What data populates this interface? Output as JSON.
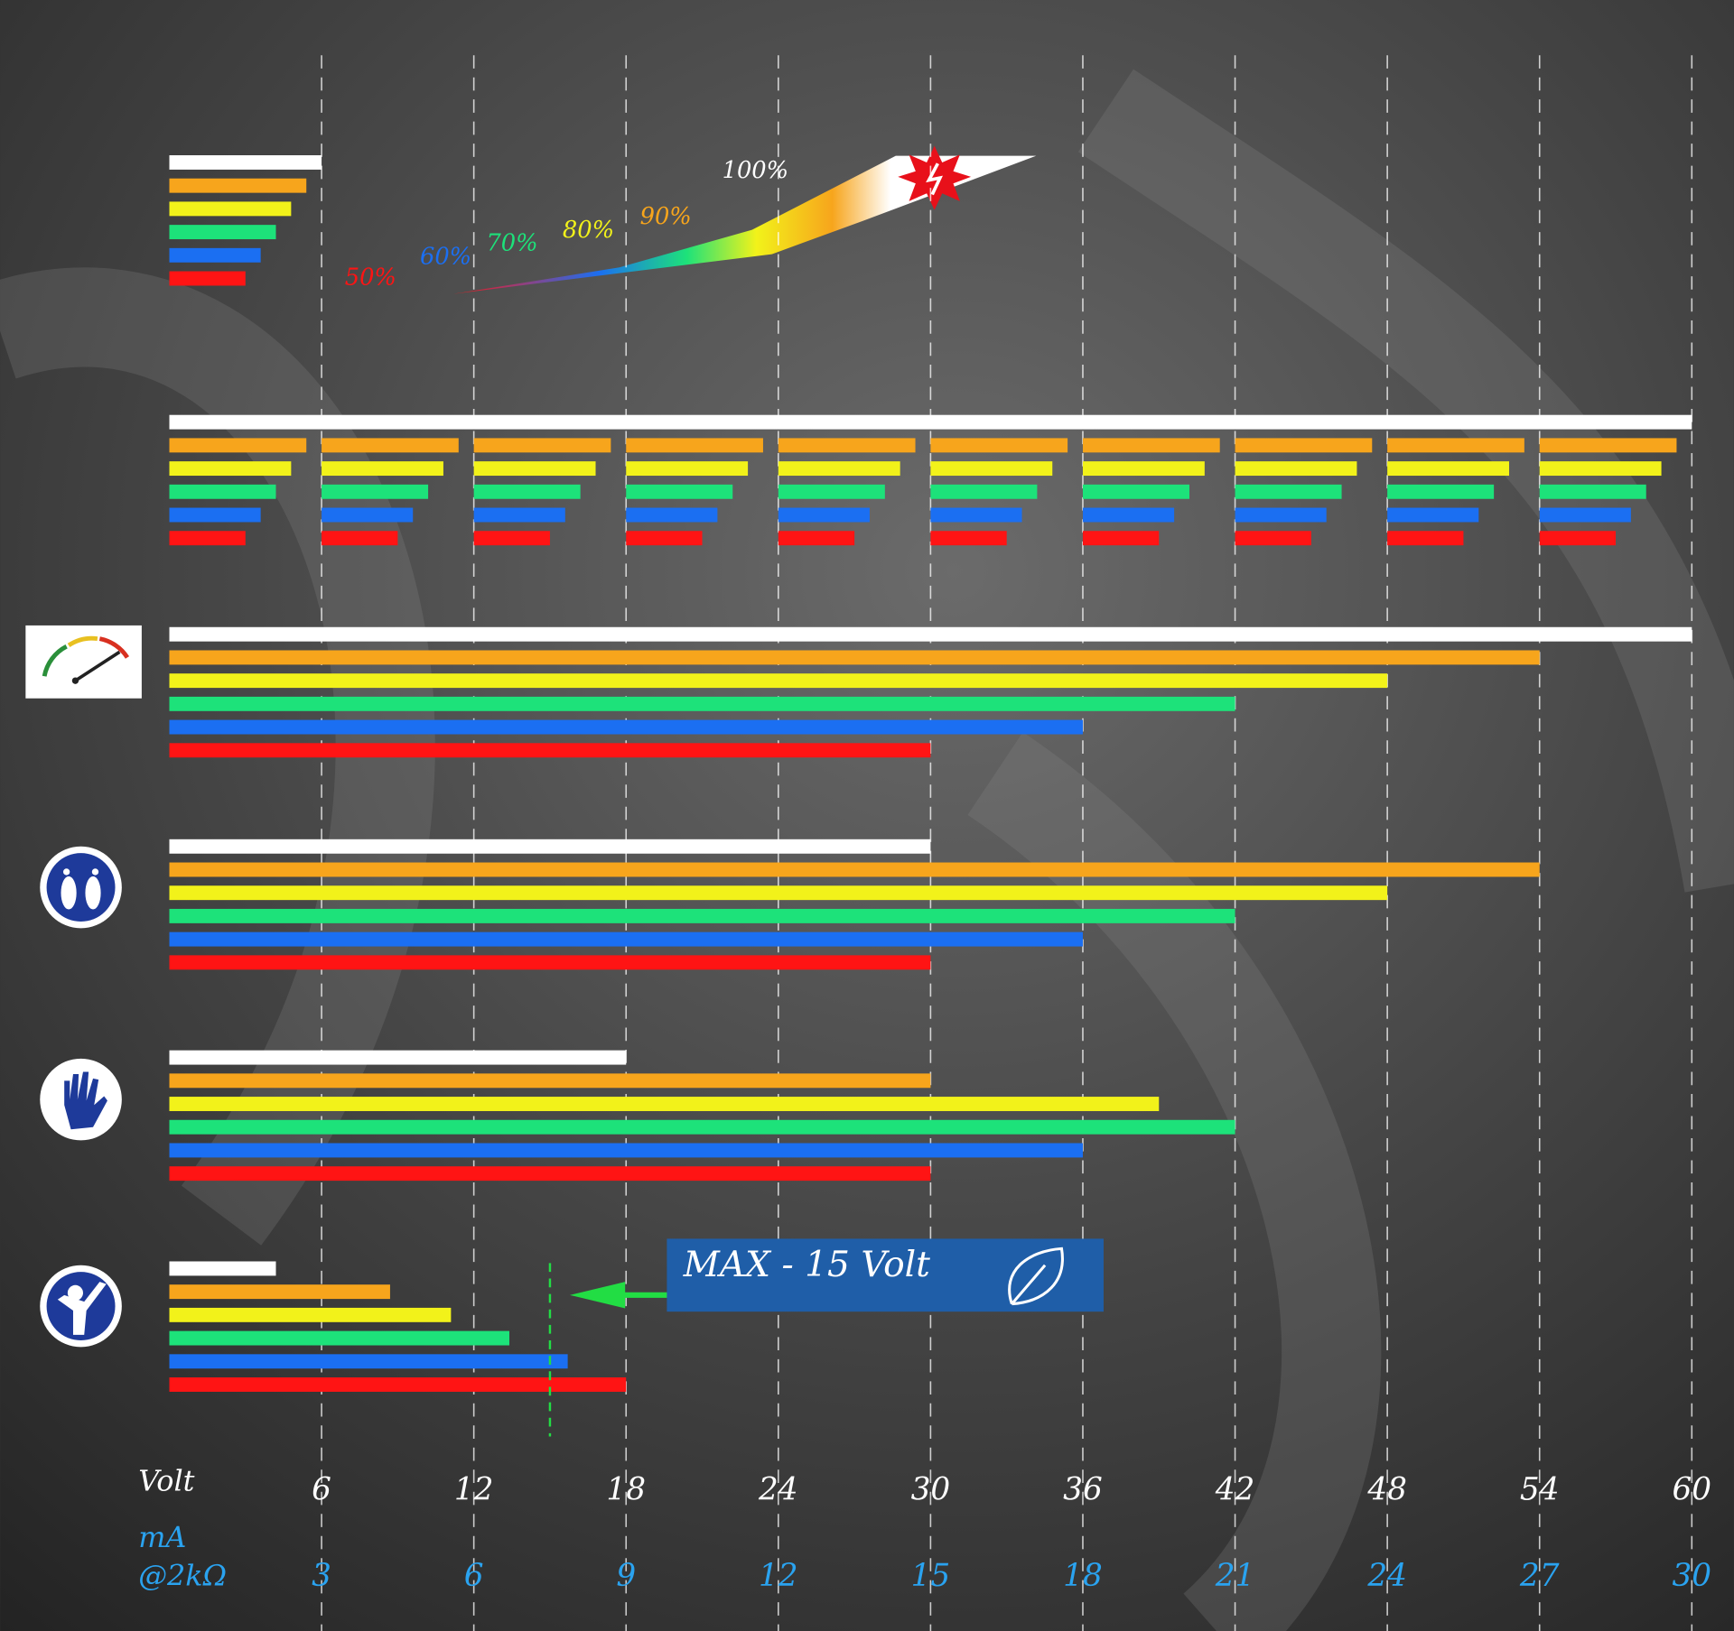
{
  "chart_data": {
    "type": "bar",
    "orientation": "horizontal",
    "x_label": "Volt",
    "x2_label": "mA",
    "x2_sublabel": "@2kΩ",
    "xlim": [
      0,
      60
    ],
    "xticks": [
      6,
      12,
      18,
      24,
      30,
      36,
      42,
      48,
      54,
      60
    ],
    "x2lim": [
      0,
      30
    ],
    "x2ticks": [
      3,
      6,
      9,
      12,
      15,
      18,
      21,
      24,
      27,
      30
    ],
    "grid": true,
    "series_colors": [
      "#ffffff",
      "#f7a51c",
      "#f2f21a",
      "#1de27a",
      "#1b6ff2",
      "#ff1414"
    ],
    "legend": [
      {
        "label": "50%",
        "color": "#ff1414"
      },
      {
        "label": "60%",
        "color": "#1b6ff2"
      },
      {
        "label": "70%",
        "color": "#1de27a"
      },
      {
        "label": "80%",
        "color": "#f2f21a"
      },
      {
        "label": "90%",
        "color": "#f7a51c"
      },
      {
        "label": "100%",
        "color": "#ffffff"
      }
    ],
    "groups": [
      {
        "values": [
          6,
          5.4,
          4.8,
          4.2,
          3.6,
          3.0
        ]
      },
      {
        "values": [
          60
        ],
        "segments": [
          [
            5.4,
            5.4,
            5.4,
            5.4,
            5.4,
            5.4,
            5.4,
            5.4,
            5.4,
            5.4
          ],
          [
            4.8,
            4.8,
            4.8,
            4.8,
            4.8,
            4.8,
            4.8,
            4.8,
            4.8,
            4.8
          ],
          [
            4.2,
            4.2,
            4.2,
            4.2,
            4.2,
            4.2,
            4.2,
            4.2,
            4.2,
            4.2
          ],
          [
            3.6,
            3.6,
            3.6,
            3.6,
            3.6,
            3.6,
            3.6,
            3.6,
            3.6,
            3.6
          ],
          [
            3.0,
            3.0,
            3.0,
            3.0,
            3.0,
            3.0,
            3.0,
            3.0,
            3.0,
            3.0
          ]
        ]
      },
      {
        "values": [
          60,
          54,
          48,
          42,
          36,
          30
        ]
      },
      {
        "values": [
          30,
          54,
          48,
          42,
          36,
          30
        ]
      },
      {
        "values": [
          18,
          30,
          39,
          42,
          36,
          30
        ]
      },
      {
        "values": [
          4.2,
          8.7,
          11.1,
          13.4,
          15.7,
          18
        ]
      }
    ],
    "annotation": {
      "text": "MAX - 15 Volt",
      "value": 15,
      "color": "#22dd44"
    }
  }
}
